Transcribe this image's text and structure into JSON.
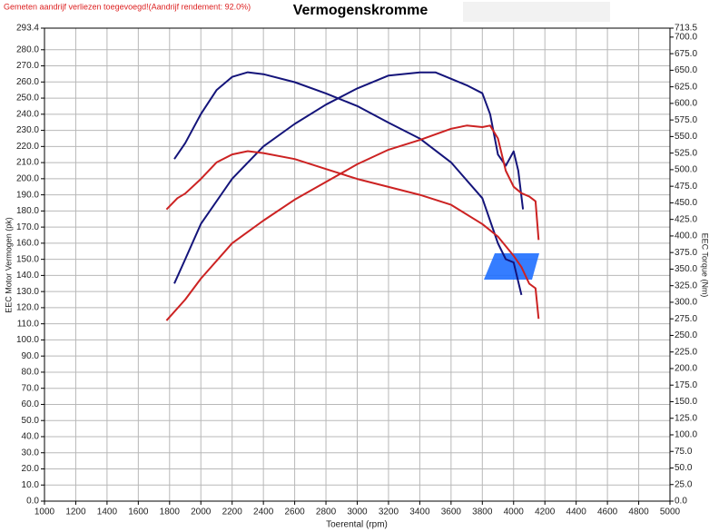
{
  "chart_data": {
    "type": "line",
    "title": "Vermogenskromme",
    "annotation": "Gemeten aandrijf verliezen toegevoegd!(Aandrijf rendement: 92.0%)",
    "x_label": "Toerental (rpm)",
    "y_label": "EEC Motor Vermogen (pk)",
    "y2_label": "EEC Torque (Nm)",
    "xlim": [
      1000,
      5000
    ],
    "xticks": [
      1000,
      1200,
      1400,
      1600,
      1800,
      2000,
      2200,
      2400,
      2600,
      2800,
      3000,
      3200,
      3400,
      3600,
      3800,
      4000,
      4200,
      4400,
      4600,
      4800,
      5000
    ],
    "ylim": [
      0,
      293.4
    ],
    "yticks": [
      {
        "value": 0,
        "label": "0.0"
      },
      {
        "value": 10,
        "label": "10.0"
      },
      {
        "value": 20,
        "label": "20.0"
      },
      {
        "value": 30,
        "label": "30.0"
      },
      {
        "value": 40,
        "label": "40.0"
      },
      {
        "value": 50,
        "label": "50.0"
      },
      {
        "value": 60,
        "label": "60.0"
      },
      {
        "value": 70,
        "label": "70.0"
      },
      {
        "value": 80,
        "label": "80.0"
      },
      {
        "value": 90,
        "label": "90.0"
      },
      {
        "value": 100,
        "label": "100.0"
      },
      {
        "value": 110,
        "label": "110.0"
      },
      {
        "value": 120,
        "label": "120.0"
      },
      {
        "value": 130,
        "label": "130.0"
      },
      {
        "value": 140,
        "label": "140.0"
      },
      {
        "value": 150,
        "label": "150.0"
      },
      {
        "value": 160,
        "label": "160.0"
      },
      {
        "value": 170,
        "label": "170.0"
      },
      {
        "value": 180,
        "label": "180.0"
      },
      {
        "value": 190,
        "label": "190.0"
      },
      {
        "value": 200,
        "label": "200.0"
      },
      {
        "value": 210,
        "label": "210.0"
      },
      {
        "value": 220,
        "label": "220.0"
      },
      {
        "value": 230,
        "label": "230.0"
      },
      {
        "value": 240,
        "label": "240.0"
      },
      {
        "value": 250,
        "label": "250.0"
      },
      {
        "value": 260,
        "label": "260.0"
      },
      {
        "value": 270,
        "label": "270.0"
      },
      {
        "value": 280,
        "label": "280.0"
      },
      293.4
    ],
    "y2lim": [
      0,
      713.5
    ],
    "y2ticks": [
      {
        "value": 0,
        "label": "0.0"
      },
      {
        "value": 25,
        "label": "25.0"
      },
      {
        "value": 50,
        "label": "50.0"
      },
      {
        "value": 75,
        "label": "75.0"
      },
      {
        "value": 100,
        "label": "100.0"
      },
      {
        "value": 125,
        "label": "125.0"
      },
      {
        "value": 150,
        "label": "150.0"
      },
      {
        "value": 175,
        "label": "175.0"
      },
      {
        "value": 200,
        "label": "200.0"
      },
      {
        "value": 225,
        "label": "225.0"
      },
      {
        "value": 250,
        "label": "250.0"
      },
      {
        "value": 275,
        "label": "275.0"
      },
      {
        "value": 300,
        "label": "300.0"
      },
      {
        "value": 325,
        "label": "325.0"
      },
      {
        "value": 350,
        "label": "350.0"
      },
      {
        "value": 375,
        "label": "375.0"
      },
      {
        "value": 400,
        "label": "400.0"
      },
      {
        "value": 425,
        "label": "425.0"
      },
      {
        "value": 450,
        "label": "450.0"
      },
      {
        "value": 475,
        "label": "475.0"
      },
      {
        "value": 500,
        "label": "500.0"
      },
      {
        "value": 525,
        "label": "525.0"
      },
      {
        "value": 550,
        "label": "550.0"
      },
      {
        "value": 575,
        "label": "575.0"
      },
      {
        "value": 600,
        "label": "600.0"
      },
      {
        "value": 625,
        "label": "625.0"
      },
      {
        "value": 650,
        "label": "650.0"
      },
      {
        "value": 675,
        "label": "675.0"
      },
      {
        "value": 700,
        "label": "700.0"
      },
      713.5
    ],
    "grid": true,
    "series": [
      {
        "color": "#14147a",
        "axis": "y",
        "x": [
          1830,
          1900,
          2000,
          2200,
          2400,
          2600,
          2800,
          3000,
          3200,
          3400,
          3500,
          3600,
          3700,
          3800,
          3850,
          3900,
          3950,
          4000,
          4030,
          4060
        ],
        "values": [
          135,
          150,
          172,
          200,
          220,
          234,
          246,
          256,
          264,
          266,
          266,
          262,
          258,
          253,
          240,
          215,
          208,
          217,
          205,
          181
        ]
      },
      {
        "color": "#14147a",
        "axis": "y2",
        "x": [
          1830,
          1900,
          2000,
          2100,
          2200,
          2300,
          2400,
          2600,
          2800,
          3000,
          3200,
          3400,
          3600,
          3800,
          3900,
          3950,
          4000,
          4050
        ],
        "values": [
          516,
          540,
          584,
          620,
          640,
          647,
          644,
          632,
          615,
          596,
          571,
          547,
          511,
          457,
          389,
          365,
          360,
          311
        ]
      },
      {
        "color": "#cc2222",
        "axis": "y",
        "x": [
          1780,
          1900,
          2000,
          2200,
          2400,
          2600,
          2800,
          3000,
          3200,
          3400,
          3600,
          3700,
          3800,
          3850,
          3900,
          3950,
          4000,
          4050,
          4100,
          4140,
          4160
        ],
        "values": [
          112,
          125,
          138,
          160,
          174,
          187,
          198,
          209,
          218,
          224,
          231,
          233,
          232,
          233,
          225,
          205,
          195,
          191,
          189,
          186,
          162
        ]
      },
      {
        "color": "#cc2222",
        "axis": "y2",
        "x": [
          1780,
          1850,
          1900,
          2000,
          2100,
          2200,
          2300,
          2400,
          2600,
          2800,
          3000,
          3200,
          3400,
          3600,
          3800,
          3900,
          4000,
          4050,
          4100,
          4140,
          4160
        ],
        "values": [
          440,
          457,
          464,
          486,
          511,
          523,
          528,
          525,
          516,
          501,
          486,
          474,
          462,
          447,
          418,
          399,
          370,
          353,
          328,
          321,
          275
        ]
      }
    ]
  }
}
